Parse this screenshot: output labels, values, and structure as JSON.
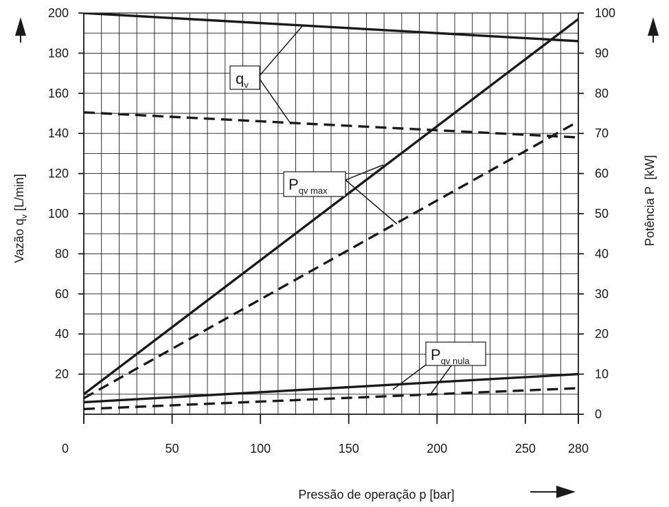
{
  "chart_data": {
    "type": "line",
    "x_axis": {
      "label": "Pressão de operação p [bar]",
      "range": [
        0,
        280
      ],
      "tick_values": [
        0,
        50,
        100,
        150,
        200,
        250,
        280
      ]
    },
    "y_axis_left": {
      "label_prefix": "Vazão q",
      "label_sub": "v",
      "label_suffix": " [L/min]",
      "range": [
        0,
        200
      ],
      "tick_values": [
        20,
        40,
        60,
        80,
        100,
        120,
        140,
        160,
        180,
        200
      ]
    },
    "y_axis_right": {
      "label": "Potência P  [kW]",
      "range": [
        0,
        100
      ],
      "tick_values": [
        0,
        10,
        20,
        30,
        40,
        50,
        60,
        70,
        80,
        90,
        100
      ]
    },
    "grid": true,
    "series": [
      {
        "axis": "left",
        "style": "solid",
        "x": [
          0,
          280
        ],
        "y": [
          200,
          186
        ]
      },
      {
        "axis": "left",
        "style": "dashed",
        "x": [
          0,
          280
        ],
        "y": [
          150.5,
          138
        ]
      },
      {
        "axis": "right",
        "style": "solid",
        "x": [
          0,
          280
        ],
        "y": [
          5,
          98.5
        ]
      },
      {
        "axis": "right",
        "style": "dashed",
        "x": [
          0,
          280
        ],
        "y": [
          4,
          73
        ]
      },
      {
        "axis": "right",
        "style": "solid",
        "x": [
          0,
          280
        ],
        "y": [
          3,
          10
        ]
      },
      {
        "axis": "right",
        "style": "dashed",
        "x": [
          0,
          280
        ],
        "y": [
          1.3,
          6.5
        ]
      }
    ],
    "annotations": [
      {
        "main": "q",
        "sub": "v"
      },
      {
        "main": "P",
        "sub": "qv max"
      },
      {
        "main": "P",
        "sub": "qv nula"
      }
    ]
  }
}
